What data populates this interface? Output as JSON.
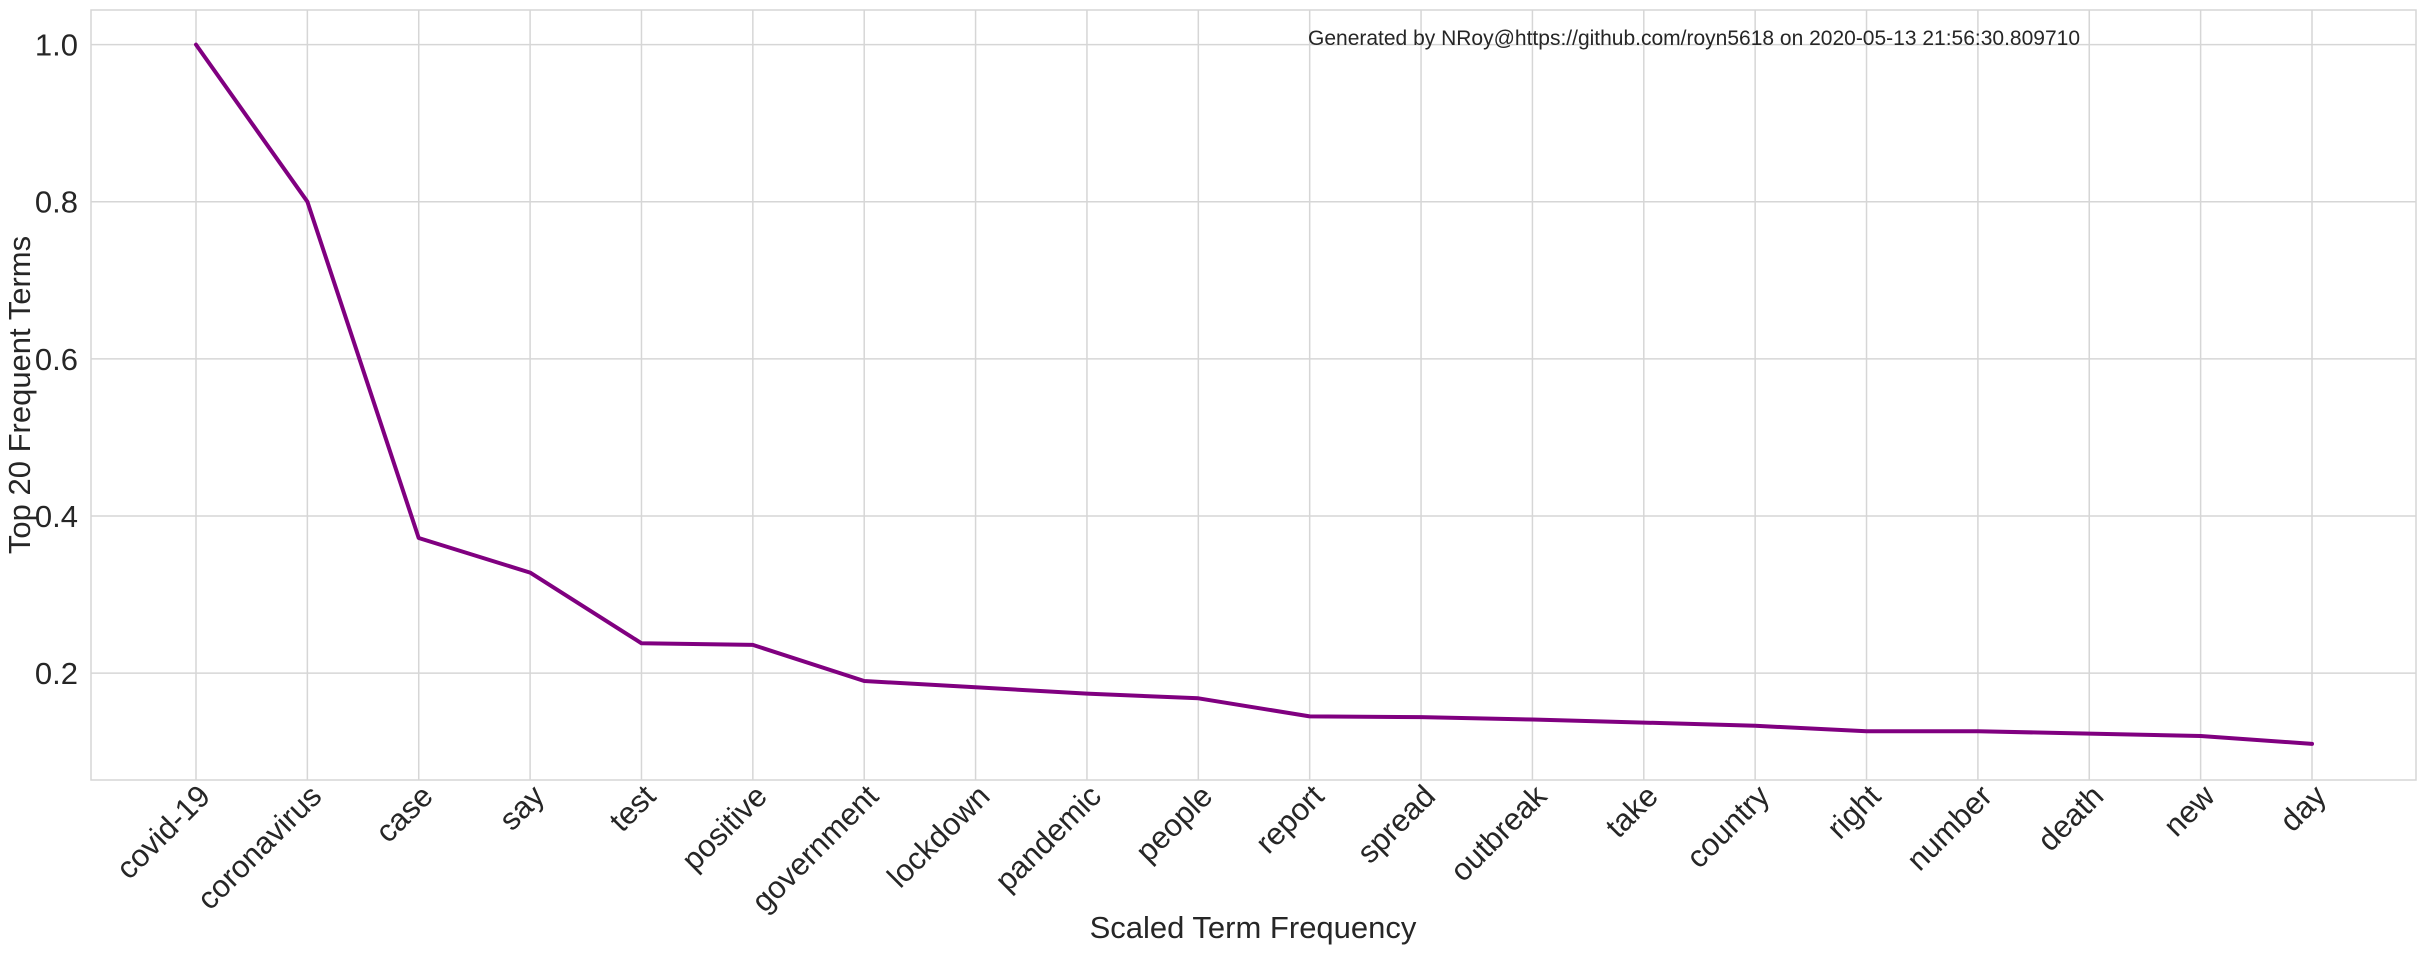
{
  "chart_data": {
    "type": "line",
    "categories": [
      "covid-19",
      "coronavirus",
      "case",
      "say",
      "test",
      "positive",
      "government",
      "lockdown",
      "pandemic",
      "people",
      "report",
      "spread",
      "outbreak",
      "take",
      "country",
      "right",
      "number",
      "death",
      "new",
      "day"
    ],
    "series": [
      {
        "values": [
          1.0,
          0.8,
          0.372,
          0.328,
          0.238,
          0.236,
          0.19,
          0.182,
          0.174,
          0.168,
          0.145,
          0.144,
          0.141,
          0.137,
          0.133,
          0.126,
          0.126,
          0.123,
          0.12,
          0.11
        ],
        "color": "#800080"
      }
    ],
    "xlabel": "Scaled Term Frequency",
    "ylabel": "Top 20 Frequent Terms",
    "ylim": [
      0.064,
      1.044
    ],
    "yticks": [
      0.2,
      0.4,
      0.6,
      0.8,
      1.0
    ],
    "ytick_labels": [
      "0.2",
      "0.4",
      "0.6",
      "0.8",
      "1.0"
    ],
    "annotation": "Generated by NRoy@https://github.com/royn5618 on 2020-05-13 21:56:30.809710",
    "grid": true,
    "legend": "none"
  }
}
